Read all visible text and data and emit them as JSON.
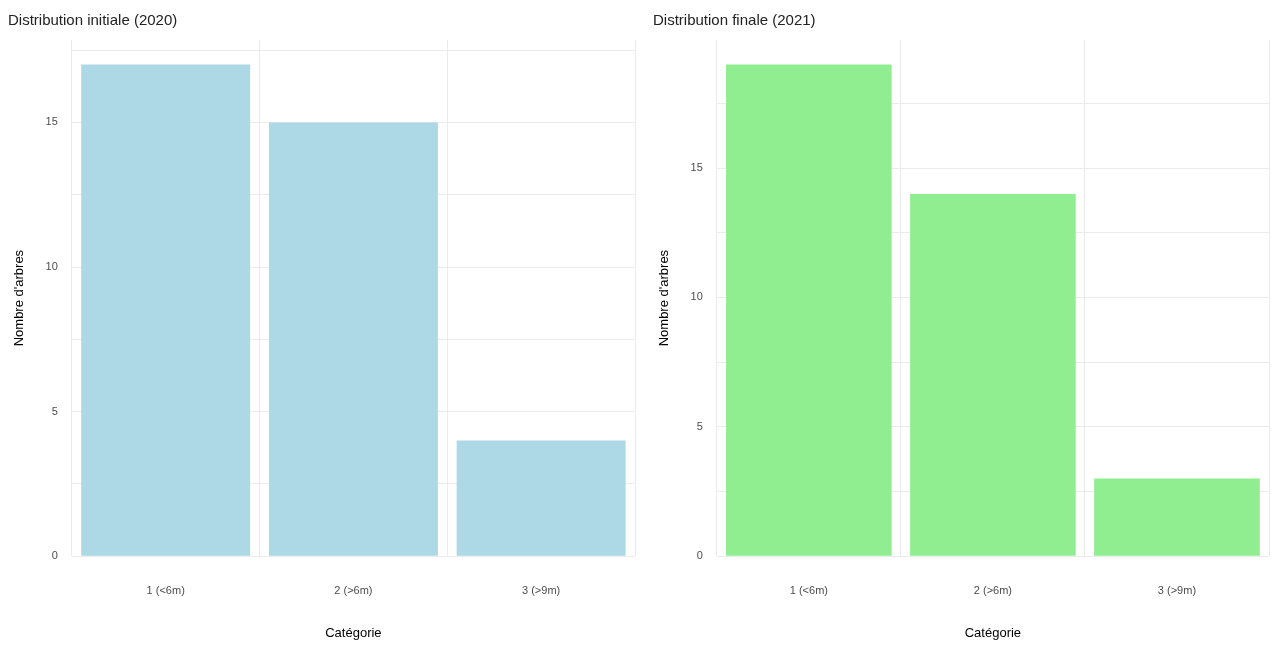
{
  "chart_data": [
    {
      "type": "bar",
      "title": "Distribution initiale (2020)",
      "xlabel": "Catégorie",
      "ylabel": "Nombre d'arbres",
      "categories": [
        "1 (<6m)",
        "2 (>6m)",
        "3 (>9m)"
      ],
      "values": [
        17,
        15,
        4
      ],
      "color": "#add8e6",
      "ylim": [
        0,
        17.85
      ],
      "yticks": [
        0,
        {
          "value": 2.5,
          "label": null
        },
        5,
        {
          "value": 7.5,
          "label": null
        },
        10,
        {
          "value": 12.5,
          "label": null
        },
        15,
        {
          "value": 17.5,
          "label": null
        }
      ],
      "grid": true
    },
    {
      "type": "bar",
      "title": "Distribution finale (2021)",
      "xlabel": "Catégorie",
      "ylabel": "Nombre d'arbres",
      "categories": [
        "1 (<6m)",
        "2 (>6m)",
        "3 (>9m)"
      ],
      "values": [
        19,
        14,
        3
      ],
      "color": "#90ee90",
      "ylim": [
        0,
        19.95
      ],
      "yticks": [
        0,
        {
          "value": 2.5,
          "label": null
        },
        5,
        {
          "value": 7.5,
          "label": null
        },
        10,
        {
          "value": 12.5,
          "label": null
        },
        15,
        {
          "value": 17.5,
          "label": null
        }
      ],
      "grid": true
    }
  ]
}
